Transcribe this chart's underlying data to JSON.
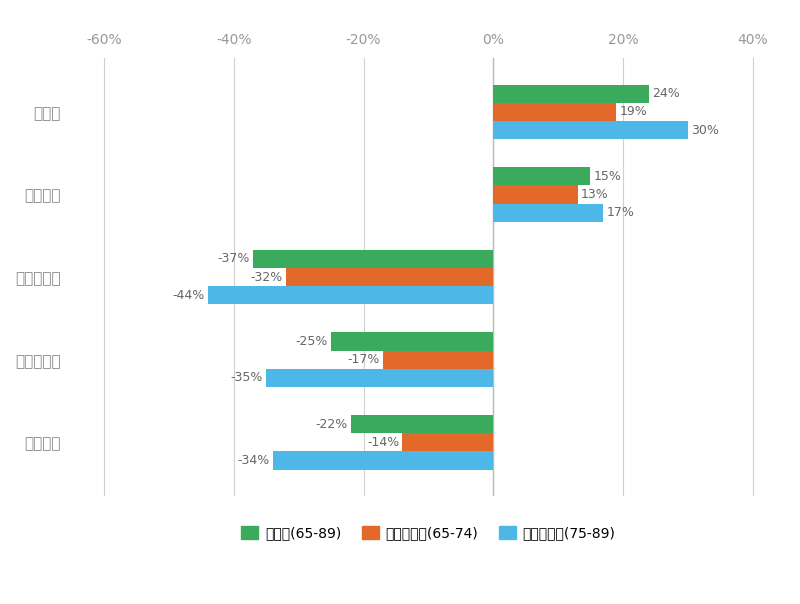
{
  "categories": [
    "輸入牛計",
    "米国産牛計",
    "豪州産牛計",
    "国産牛計",
    "和牛計"
  ],
  "series": {
    "高齢者(65-89)": [
      -22,
      -25,
      -37,
      15,
      24
    ],
    "前期高齢者(65-74)": [
      -14,
      -17,
      -32,
      13,
      19
    ],
    "後期高齢者(75-89)": [
      -34,
      -35,
      -44,
      17,
      30
    ]
  },
  "colors": {
    "高齢者(65-89)": "#3aaa5c",
    "前期高齢者(65-74)": "#e2692a",
    "後期高齢者(75-89)": "#4db8e8"
  },
  "xlim": [
    -65,
    45
  ],
  "xticks": [
    -60,
    -40,
    -20,
    0,
    20,
    40
  ],
  "xtick_labels": [
    "-60%",
    "-40%",
    "-20%",
    "0%",
    "20%",
    "40%"
  ],
  "bar_height": 0.22,
  "bar_gap": 0.22,
  "figsize": [
    8.0,
    6.04
  ],
  "dpi": 100,
  "bg_color": "#ffffff",
  "grid_color": "#d0d0d0",
  "label_fontsize": 9,
  "ytick_fontsize": 11,
  "xtick_fontsize": 10,
  "legend_fontsize": 10
}
